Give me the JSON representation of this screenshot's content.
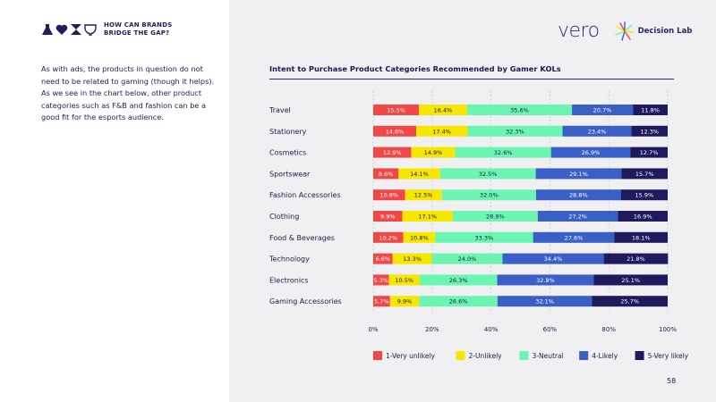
{
  "header": {
    "tagline_line1": "HOW CAN BRANDS",
    "tagline_line2": "BRIDGE THE GAP?",
    "intro_text": "As with ads, the products in question do not need to be related to gaming (though it helps). As we see in the chart below, other product categories such as F&B and fashion can be a good fit for the esports audience.",
    "logo_vero": "vero",
    "logo_decision_lab": "Decision Lab"
  },
  "colors": {
    "very_unlikely": "#f04848",
    "unlikely": "#f7e600",
    "neutral": "#6cf5b0",
    "likely": "#3a5fc6",
    "very_likely": "#1e1a5e",
    "navy": "#1a1a4a"
  },
  "chart_data": {
    "type": "bar",
    "orientation": "horizontal",
    "stacked": true,
    "title": "Intent to Purchase Product Categories Recommended by Gamer KOLs",
    "categories": [
      "Travel",
      "Stationery",
      "Cosmetics",
      "Sportswear",
      "Fashion Accessories",
      "Clothing",
      "Food & Beverages",
      "Technology",
      "Electronics",
      "Gaming Accessories"
    ],
    "series": [
      {
        "name": "1-Very unlikely",
        "values": [
          15.5,
          14.6,
          12.9,
          8.6,
          10.8,
          9.9,
          10.2,
          6.6,
          5.3,
          5.7
        ],
        "labels": [
          "15.5%",
          "14.6%",
          "12.9%",
          "8.6%",
          "10.8%",
          "9.9%",
          "10.2%",
          "6.6%",
          "5.3%",
          "5.7%"
        ]
      },
      {
        "name": "2-Unlikely",
        "values": [
          16.4,
          17.4,
          14.9,
          14.1,
          12.5,
          17.1,
          10.8,
          13.3,
          10.5,
          9.9
        ],
        "labels": [
          "16.4%",
          "17.4%",
          "14.9%",
          "14.1%",
          "12.5%",
          "17.1%",
          "10.8%",
          "13.3%",
          "10.5%",
          "9.9%"
        ]
      },
      {
        "name": "3-Neutral",
        "values": [
          35.6,
          32.3,
          32.6,
          32.5,
          32.0,
          28.9,
          33.3,
          24.0,
          26.3,
          26.6
        ],
        "labels": [
          "35.6%",
          "32.3%",
          "32.6%",
          "32.5%",
          "32.0%",
          "28.9%",
          "33.3%",
          "24.0%",
          "26.3%",
          "26.6%"
        ]
      },
      {
        "name": "4-Likely",
        "values": [
          20.7,
          23.4,
          26.9,
          29.1,
          28.8,
          27.2,
          27.6,
          34.4,
          32.8,
          32.1
        ],
        "labels": [
          "20.7%",
          "23.4%",
          "26.9%",
          "29.1%",
          "28.8%",
          "27.2%",
          "27.6%",
          "34.4%",
          "32.8%",
          "32.1%"
        ]
      },
      {
        "name": "5-Very likely",
        "values": [
          11.8,
          12.3,
          12.7,
          15.7,
          15.9,
          16.9,
          18.1,
          21.8,
          25.1,
          25.7
        ],
        "labels": [
          "11.8%",
          "12.3%",
          "12.7%",
          "15.7%",
          "15.9%",
          "16.9%",
          "18.1%",
          "21.8%",
          "25.1%",
          "25.7%"
        ]
      }
    ],
    "xlim": [
      0,
      100
    ],
    "xticks": [
      "0%",
      "20%",
      "40%",
      "60%",
      "80%",
      "100%"
    ],
    "grid": true,
    "legend_position": "bottom"
  },
  "page_number": "58"
}
